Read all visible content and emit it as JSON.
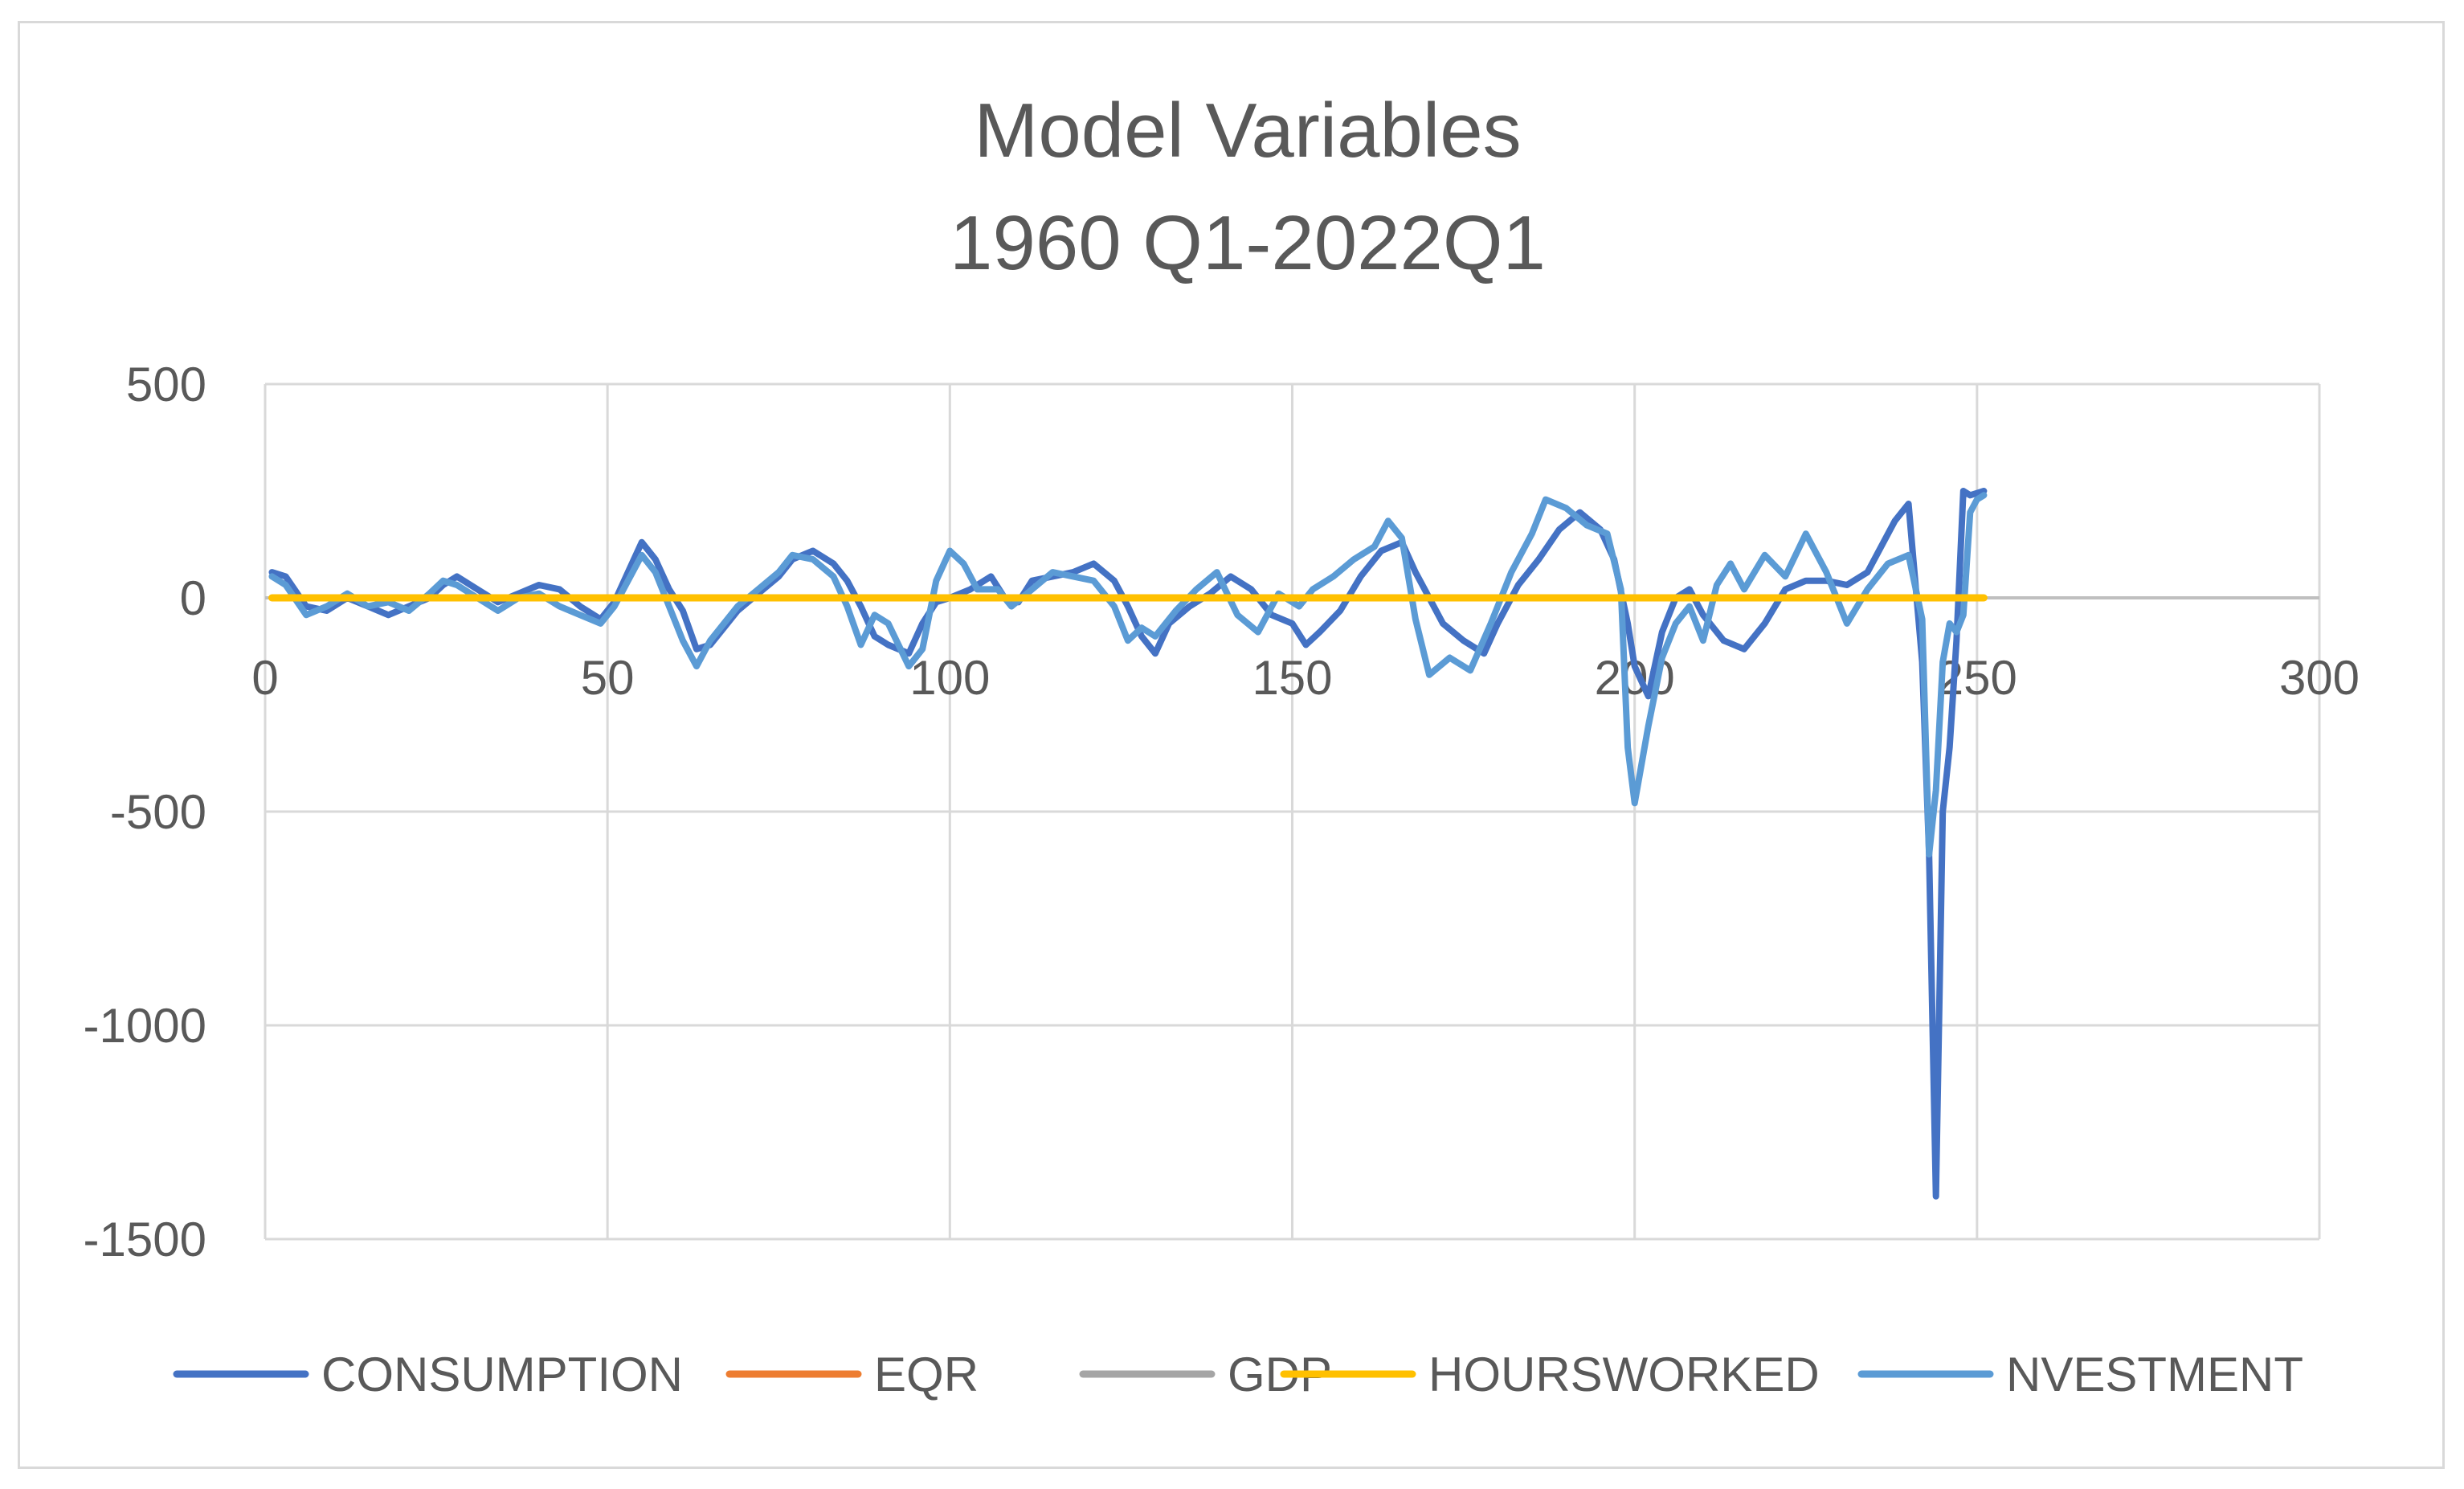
{
  "chart_data": {
    "type": "line",
    "title": "Model Variables",
    "subtitle": "1960 Q1-2022Q1",
    "xlabel": "",
    "ylabel": "",
    "xlim": [
      0,
      300
    ],
    "ylim": [
      -1500,
      500
    ],
    "x_ticks": [
      0,
      50,
      100,
      150,
      200,
      250,
      300
    ],
    "y_ticks": [
      500,
      0,
      -500,
      -1000,
      -1500
    ],
    "grid": true,
    "legend_position": "bottom",
    "series": [
      {
        "name": "CONSUMPTION",
        "color": "#4472c4",
        "points": [
          [
            1,
            60
          ],
          [
            3,
            50
          ],
          [
            6,
            -20
          ],
          [
            9,
            -30
          ],
          [
            12,
            0
          ],
          [
            15,
            -20
          ],
          [
            18,
            -40
          ],
          [
            21,
            -20
          ],
          [
            24,
            0
          ],
          [
            26,
            30
          ],
          [
            28,
            50
          ],
          [
            31,
            20
          ],
          [
            34,
            -10
          ],
          [
            37,
            10
          ],
          [
            40,
            30
          ],
          [
            43,
            20
          ],
          [
            46,
            -20
          ],
          [
            49,
            -50
          ],
          [
            51,
            -10
          ],
          [
            53,
            60
          ],
          [
            55,
            130
          ],
          [
            57,
            90
          ],
          [
            59,
            20
          ],
          [
            61,
            -30
          ],
          [
            63,
            -120
          ],
          [
            65,
            -110
          ],
          [
            67,
            -70
          ],
          [
            69,
            -30
          ],
          [
            72,
            10
          ],
          [
            75,
            50
          ],
          [
            77,
            90
          ],
          [
            80,
            110
          ],
          [
            83,
            80
          ],
          [
            85,
            40
          ],
          [
            87,
            -20
          ],
          [
            89,
            -90
          ],
          [
            91,
            -110
          ],
          [
            94,
            -130
          ],
          [
            96,
            -60
          ],
          [
            98,
            -10
          ],
          [
            100,
            0
          ],
          [
            103,
            20
          ],
          [
            106,
            50
          ],
          [
            108,
            0
          ],
          [
            110,
            -10
          ],
          [
            112,
            40
          ],
          [
            115,
            50
          ],
          [
            118,
            60
          ],
          [
            121,
            80
          ],
          [
            124,
            40
          ],
          [
            126,
            -20
          ],
          [
            128,
            -90
          ],
          [
            130,
            -130
          ],
          [
            132,
            -60
          ],
          [
            135,
            -20
          ],
          [
            138,
            10
          ],
          [
            141,
            50
          ],
          [
            144,
            20
          ],
          [
            147,
            -40
          ],
          [
            150,
            -60
          ],
          [
            152,
            -110
          ],
          [
            154,
            -80
          ],
          [
            157,
            -30
          ],
          [
            160,
            50
          ],
          [
            163,
            110
          ],
          [
            166,
            130
          ],
          [
            168,
            60
          ],
          [
            170,
            0
          ],
          [
            172,
            -60
          ],
          [
            175,
            -100
          ],
          [
            178,
            -130
          ],
          [
            180,
            -60
          ],
          [
            183,
            30
          ],
          [
            186,
            90
          ],
          [
            189,
            160
          ],
          [
            192,
            200
          ],
          [
            195,
            160
          ],
          [
            197,
            90
          ],
          [
            199,
            -60
          ],
          [
            200,
            -160
          ],
          [
            202,
            -230
          ],
          [
            204,
            -80
          ],
          [
            206,
            0
          ],
          [
            208,
            20
          ],
          [
            210,
            -40
          ],
          [
            213,
            -100
          ],
          [
            216,
            -120
          ],
          [
            219,
            -60
          ],
          [
            222,
            20
          ],
          [
            225,
            40
          ],
          [
            228,
            40
          ],
          [
            231,
            30
          ],
          [
            234,
            60
          ],
          [
            236,
            120
          ],
          [
            238,
            180
          ],
          [
            240,
            220
          ],
          [
            242,
            -150
          ],
          [
            243,
            -600
          ],
          [
            244,
            -1400
          ],
          [
            245,
            -500
          ],
          [
            246,
            -350
          ],
          [
            247,
            -100
          ],
          [
            248,
            250
          ],
          [
            249,
            240
          ],
          [
            250,
            245
          ],
          [
            251,
            250
          ]
        ]
      },
      {
        "name": "EQR",
        "color": "#ed7d31",
        "points": [
          [
            1,
            0
          ],
          [
            251,
            0
          ]
        ]
      },
      {
        "name": "GDP",
        "color": "#a5a5a5",
        "points": [
          [
            1,
            0
          ],
          [
            251,
            0
          ]
        ]
      },
      {
        "name": "HOURSWORKED",
        "color": "#ffc000",
        "points": [
          [
            1,
            0
          ],
          [
            251,
            0
          ]
        ]
      },
      {
        "name": "NVESTMENT",
        "color": "#5b9bd5",
        "points": [
          [
            1,
            50
          ],
          [
            3,
            30
          ],
          [
            6,
            -40
          ],
          [
            9,
            -20
          ],
          [
            12,
            10
          ],
          [
            15,
            -20
          ],
          [
            18,
            -10
          ],
          [
            21,
            -30
          ],
          [
            24,
            10
          ],
          [
            26,
            40
          ],
          [
            28,
            30
          ],
          [
            31,
            0
          ],
          [
            34,
            -30
          ],
          [
            37,
            0
          ],
          [
            40,
            10
          ],
          [
            43,
            -20
          ],
          [
            46,
            -40
          ],
          [
            49,
            -60
          ],
          [
            51,
            -20
          ],
          [
            53,
            40
          ],
          [
            55,
            100
          ],
          [
            57,
            60
          ],
          [
            59,
            -20
          ],
          [
            61,
            -100
          ],
          [
            63,
            -160
          ],
          [
            65,
            -100
          ],
          [
            67,
            -60
          ],
          [
            69,
            -20
          ],
          [
            72,
            20
          ],
          [
            75,
            60
          ],
          [
            77,
            100
          ],
          [
            80,
            90
          ],
          [
            83,
            50
          ],
          [
            85,
            -20
          ],
          [
            87,
            -110
          ],
          [
            89,
            -40
          ],
          [
            91,
            -60
          ],
          [
            94,
            -160
          ],
          [
            96,
            -120
          ],
          [
            98,
            40
          ],
          [
            100,
            110
          ],
          [
            102,
            80
          ],
          [
            104,
            20
          ],
          [
            107,
            20
          ],
          [
            109,
            -20
          ],
          [
            112,
            20
          ],
          [
            115,
            60
          ],
          [
            118,
            50
          ],
          [
            121,
            40
          ],
          [
            124,
            -20
          ],
          [
            126,
            -100
          ],
          [
            128,
            -70
          ],
          [
            130,
            -90
          ],
          [
            133,
            -30
          ],
          [
            136,
            20
          ],
          [
            139,
            60
          ],
          [
            142,
            -40
          ],
          [
            145,
            -80
          ],
          [
            148,
            10
          ],
          [
            151,
            -20
          ],
          [
            153,
            20
          ],
          [
            156,
            50
          ],
          [
            159,
            90
          ],
          [
            162,
            120
          ],
          [
            164,
            180
          ],
          [
            166,
            140
          ],
          [
            168,
            -50
          ],
          [
            170,
            -180
          ],
          [
            173,
            -140
          ],
          [
            176,
            -170
          ],
          [
            179,
            -60
          ],
          [
            182,
            60
          ],
          [
            185,
            150
          ],
          [
            187,
            230
          ],
          [
            190,
            210
          ],
          [
            193,
            170
          ],
          [
            196,
            150
          ],
          [
            198,
            20
          ],
          [
            199,
            -350
          ],
          [
            200,
            -480
          ],
          [
            202,
            -300
          ],
          [
            204,
            -140
          ],
          [
            206,
            -60
          ],
          [
            208,
            -20
          ],
          [
            210,
            -100
          ],
          [
            212,
            30
          ],
          [
            214,
            80
          ],
          [
            216,
            20
          ],
          [
            219,
            100
          ],
          [
            222,
            50
          ],
          [
            225,
            150
          ],
          [
            228,
            60
          ],
          [
            231,
            -60
          ],
          [
            234,
            20
          ],
          [
            237,
            80
          ],
          [
            240,
            100
          ],
          [
            242,
            -50
          ],
          [
            243,
            -600
          ],
          [
            244,
            -450
          ],
          [
            245,
            -150
          ],
          [
            246,
            -60
          ],
          [
            247,
            -80
          ],
          [
            248,
            -40
          ],
          [
            249,
            200
          ],
          [
            250,
            230
          ],
          [
            251,
            240
          ]
        ]
      }
    ]
  }
}
